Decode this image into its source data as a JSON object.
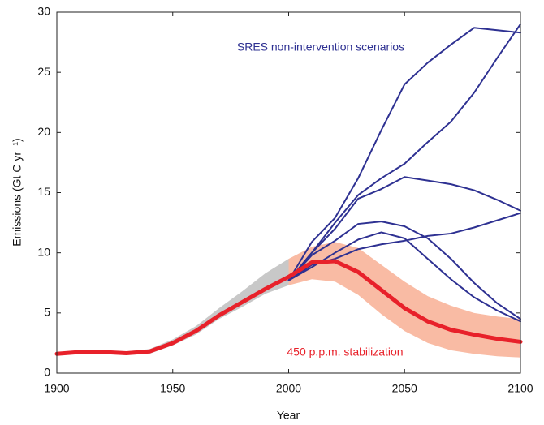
{
  "chart_data": {
    "type": "line",
    "x_label": "Year",
    "y_label": "Emissions (Gt C yr⁻¹)",
    "xlim": [
      1900,
      2100
    ],
    "ylim": [
      0,
      30
    ],
    "xticks": [
      1900,
      1950,
      2000,
      2050,
      2100
    ],
    "yticks": [
      0,
      5,
      10,
      15,
      20,
      25,
      30
    ],
    "bands": [
      {
        "color": "#c8c8c8",
        "x": [
          1900,
          1910,
          1920,
          1930,
          1940,
          1950,
          1960,
          1970,
          1980,
          1990,
          2000
        ],
        "lower": [
          1.5,
          1.6,
          1.6,
          1.5,
          1.6,
          2.3,
          3.2,
          4.5,
          5.5,
          6.6,
          7.3
        ],
        "upper": [
          1.7,
          1.9,
          1.9,
          1.8,
          2.0,
          2.8,
          3.9,
          5.4,
          6.8,
          8.3,
          9.5
        ]
      },
      {
        "color": "#f9bba4",
        "x": [
          2000,
          2010,
          2020,
          2030,
          2040,
          2050,
          2060,
          2070,
          2080,
          2090,
          2100
        ],
        "lower": [
          7.3,
          7.8,
          7.6,
          6.5,
          4.9,
          3.5,
          2.5,
          1.9,
          1.6,
          1.4,
          1.3
        ],
        "upper": [
          9.5,
          10.5,
          10.9,
          10.4,
          9.0,
          7.6,
          6.4,
          5.6,
          5.0,
          4.7,
          4.5
        ]
      }
    ],
    "series": [
      {
        "color": "#2e3192",
        "width": 2,
        "x": [
          2000,
          2010,
          2020,
          2030,
          2040,
          2050,
          2060,
          2070,
          2080,
          2090,
          2100
        ],
        "values": [
          7.7,
          10.9,
          12.9,
          16.2,
          20.2,
          24.0,
          25.8,
          27.3,
          28.7,
          28.5,
          28.3
        ]
      },
      {
        "color": "#2e3192",
        "width": 2,
        "x": [
          2000,
          2010,
          2020,
          2030,
          2040,
          2050,
          2060,
          2070,
          2080,
          2090,
          2100
        ],
        "values": [
          7.7,
          10.0,
          12.5,
          14.8,
          16.2,
          17.4,
          19.2,
          20.9,
          23.3,
          26.2,
          29.0
        ]
      },
      {
        "color": "#2e3192",
        "width": 2,
        "x": [
          2000,
          2010,
          2020,
          2030,
          2040,
          2050,
          2060,
          2070,
          2080,
          2090,
          2100
        ],
        "values": [
          7.7,
          10.0,
          12.0,
          14.5,
          15.3,
          16.3,
          16.0,
          15.7,
          15.2,
          14.4,
          13.5
        ]
      },
      {
        "color": "#2e3192",
        "width": 2,
        "x": [
          2000,
          2010,
          2020,
          2030,
          2040,
          2050,
          2060,
          2070,
          2080,
          2090,
          2100
        ],
        "values": [
          7.7,
          9.8,
          11.0,
          12.4,
          12.6,
          12.2,
          11.2,
          9.5,
          7.5,
          5.8,
          4.5
        ]
      },
      {
        "color": "#2e3192",
        "width": 2,
        "x": [
          2000,
          2010,
          2020,
          2030,
          2040,
          2050,
          2060,
          2070,
          2080,
          2090,
          2100
        ],
        "values": [
          7.7,
          9.0,
          9.5,
          10.3,
          10.7,
          11.0,
          11.4,
          11.6,
          12.1,
          12.7,
          13.3
        ]
      },
      {
        "color": "#2e3192",
        "width": 2,
        "x": [
          2000,
          2010,
          2020,
          2030,
          2040,
          2050,
          2060,
          2070,
          2080,
          2090,
          2100
        ],
        "values": [
          7.7,
          8.8,
          10.0,
          11.1,
          11.7,
          11.2,
          9.5,
          7.8,
          6.3,
          5.2,
          4.3
        ]
      },
      {
        "color": "#e8212a",
        "width": 5,
        "x": [
          1900,
          1910,
          1920,
          1930,
          1940,
          1950,
          1960,
          1970,
          1980,
          1990,
          2000,
          2010,
          2020,
          2030,
          2040,
          2050,
          2060,
          2070,
          2080,
          2090,
          2100
        ],
        "values": [
          1.6,
          1.75,
          1.75,
          1.65,
          1.8,
          2.5,
          3.5,
          4.8,
          5.9,
          7.0,
          8.0,
          9.2,
          9.3,
          8.4,
          6.9,
          5.4,
          4.3,
          3.6,
          3.2,
          2.85,
          2.6
        ]
      }
    ],
    "annotations": [
      {
        "text": "SRES non-intervention scenarios",
        "color": "#2e3192"
      },
      {
        "text": "450 p.p.m. stabilization",
        "color": "#e8212a"
      }
    ]
  }
}
